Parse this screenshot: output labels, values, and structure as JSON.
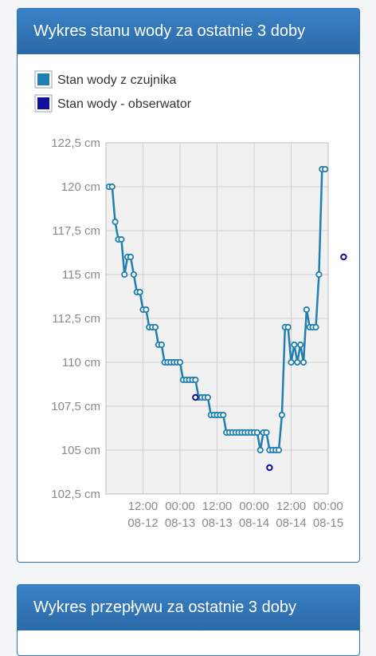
{
  "water_level_card": {
    "title": "Wykres stanu wody za ostatnie 3 doby"
  },
  "flow_card": {
    "title": "Wykres przepływu za ostatnie 3 doby"
  },
  "chart_data": {
    "type": "line",
    "title": "",
    "xlabel": "",
    "ylabel": "",
    "legend_position": "top-left",
    "grid": true,
    "ylim": [
      102.5,
      122.5
    ],
    "y_ticks": [
      "122,5 cm",
      "120 cm",
      "117,5 cm",
      "115 cm",
      "112,5 cm",
      "110 cm",
      "107,5 cm",
      "105 cm",
      "102,5 cm"
    ],
    "y_tick_values": [
      122.5,
      120,
      117.5,
      115,
      112.5,
      110,
      107.5,
      105,
      102.5
    ],
    "x_ticks": [
      {
        "time": "12:00",
        "date": "08-12"
      },
      {
        "time": "00:00",
        "date": "08-13"
      },
      {
        "time": "12:00",
        "date": "08-13"
      },
      {
        "time": "00:00",
        "date": "08-14"
      },
      {
        "time": "12:00",
        "date": "08-14"
      },
      {
        "time": "00:00",
        "date": "08-15"
      }
    ],
    "xlim_hours": [
      -6,
      66
    ],
    "x_tick_hours": [
      6,
      18,
      30,
      42,
      54,
      66
    ],
    "series": [
      {
        "name": "Stan wody z czujnika",
        "color": "#1f7fb0",
        "x_hours": [
          -5,
          -4,
          -3,
          -2,
          -1,
          0,
          1,
          2,
          3,
          4,
          5,
          6,
          7,
          8,
          9,
          10,
          11,
          12,
          13,
          14,
          15,
          16,
          17,
          18,
          19,
          20,
          21,
          22,
          23,
          24,
          25,
          26,
          27,
          28,
          29,
          30,
          31,
          32,
          33,
          34,
          35,
          36,
          37,
          38,
          39,
          40,
          41,
          42,
          43,
          44,
          45,
          46,
          47,
          48,
          49,
          50,
          51,
          52,
          53,
          54,
          55,
          56,
          57,
          58,
          59,
          60,
          61,
          62,
          63,
          64,
          65
        ],
        "values": [
          120,
          120,
          118,
          117,
          117,
          115,
          116,
          116,
          115,
          114,
          114,
          113,
          113,
          112,
          112,
          112,
          111,
          111,
          110,
          110,
          110,
          110,
          110,
          110,
          109,
          109,
          109,
          109,
          109,
          108,
          108,
          108,
          108,
          107,
          107,
          107,
          107,
          107,
          106,
          106,
          106,
          106,
          106,
          106,
          106,
          106,
          106,
          106,
          106,
          105,
          106,
          106,
          105,
          105,
          105,
          105,
          107,
          112,
          112,
          110,
          111,
          110,
          111,
          110,
          113,
          112,
          112,
          112,
          115,
          121,
          121
        ]
      },
      {
        "name": "Stan wody - obserwator",
        "color": "#10109a",
        "x_hours": [
          23,
          47,
          71
        ],
        "values": [
          108,
          104,
          116
        ]
      }
    ]
  }
}
